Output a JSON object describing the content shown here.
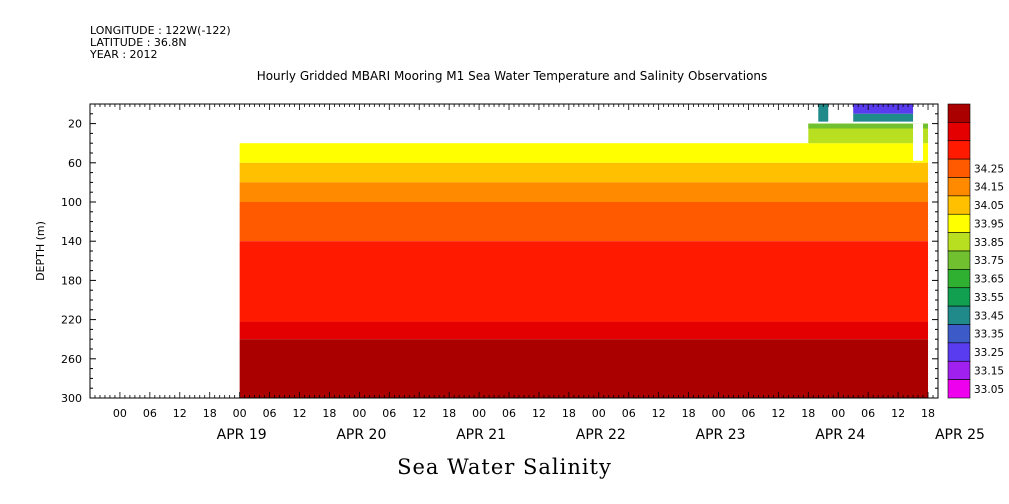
{
  "header": {
    "longitude": "LONGITUDE : 122W(-122)",
    "latitude": "LATITUDE : 36.8N",
    "year": "YEAR : 2012"
  },
  "chart_data": {
    "type": "heatmap",
    "title": "Hourly Gridded MBARI Mooring M1 Sea Water Temperature and Salinity Observations",
    "footer_title": "Sea Water Salinity",
    "xlabel": "",
    "ylabel": "DEPTH (m)",
    "x_hour_ticks": [
      "00",
      "06",
      "12",
      "18",
      "00",
      "06",
      "12",
      "18",
      "00",
      "06",
      "12",
      "18",
      "00",
      "06",
      "12",
      "18",
      "00",
      "06",
      "12",
      "18",
      "00",
      "06",
      "12",
      "18",
      "00",
      "06",
      "12",
      "18"
    ],
    "x_day_labels": [
      "APR 19",
      "APR 20",
      "APR 21",
      "APR 22",
      "APR 23",
      "APR 24",
      "APR 25"
    ],
    "xlim_hours": [
      -30,
      140
    ],
    "y_ticks": [
      20,
      60,
      100,
      140,
      180,
      220,
      260,
      300
    ],
    "ylim": [
      0,
      300
    ],
    "y_inverted": true,
    "colorbar": {
      "levels": [
        "33.05",
        "33.15",
        "33.25",
        "33.35",
        "33.45",
        "33.55",
        "33.65",
        "33.75",
        "33.85",
        "33.95",
        "34.05",
        "34.15",
        "34.25"
      ],
      "colors": [
        "#ee00ee",
        "#a020f0",
        "#5a3cf0",
        "#3c5ac8",
        "#208a8a",
        "#10a050",
        "#30b030",
        "#70c030",
        "#b8e020",
        "#ffff00",
        "#ffc000",
        "#ff8a00",
        "#ff5a00",
        "#ff1a00",
        "#e40000",
        "#aa0000"
      ]
    },
    "layers": [
      {
        "top": 40,
        "bottom": 60,
        "value": 33.85,
        "color": "#ffff00"
      },
      {
        "top": 60,
        "bottom": 80,
        "value": 33.95,
        "color": "#ffc000"
      },
      {
        "top": 80,
        "bottom": 100,
        "value": 34.0,
        "color": "#ff8a00"
      },
      {
        "top": 100,
        "bottom": 140,
        "value": 34.1,
        "color": "#ff5a00"
      },
      {
        "top": 140,
        "bottom": 222,
        "value": 34.2,
        "color": "#ff1a00"
      },
      {
        "top": 222,
        "bottom": 240,
        "value": 34.25,
        "color": "#e40000"
      },
      {
        "top": 240,
        "bottom": 300,
        "value": 34.3,
        "color": "#aa0000"
      }
    ],
    "data_start_hour": 0,
    "data_end_hour": 138
  }
}
